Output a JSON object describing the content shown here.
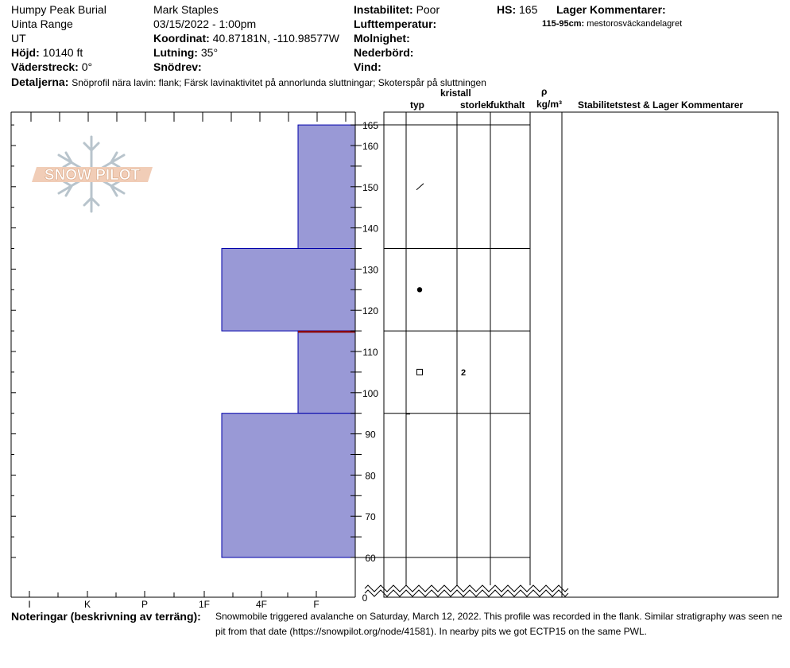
{
  "header": {
    "location": "Humpy Peak Burial",
    "range": "Uinta Range",
    "state": "UT",
    "elevation_label": "Höjd:",
    "elevation": "10140 ft",
    "aspect_label": "Väderstreck:",
    "aspect": "0°",
    "observer": "Mark Staples",
    "datetime": "03/15/2022 - 1:00pm",
    "coord_label": "Koordinat:",
    "coord": "40.87181N, -110.98577W",
    "slope_label": "Lutning:",
    "slope": "35°",
    "drift_label": "Snödrev:",
    "instability_label": "Instabilitet:",
    "instability": "Poor",
    "airtemp_label": "Lufttemperatur:",
    "cloud_label": "Molnighet:",
    "precip_label": "Nederbörd:",
    "wind_label": "Vind:",
    "hs_label": "HS:",
    "hs": "165",
    "layer_comments_label": "Lager Kommentarer:",
    "layer_comment_range": "115-95cm:",
    "layer_comment_text": "mestorosväckandelagret",
    "details_label": "Detaljerna:",
    "details": "Snöprofil nära lavin: flank; Färsk lavinaktivitet på annorlunda sluttningar; Skoterspår på sluttningen"
  },
  "logo": {
    "text": "SNOW PILOT"
  },
  "columns": {
    "type": "typ",
    "crystal": "kristall",
    "size": "storlek",
    "moisture": "fukthalt",
    "rho": "ρ",
    "density_unit": "kg/m³",
    "stability": "Stabilitetstest & Lager Kommentarer"
  },
  "notes": {
    "label": "Noteringar (beskrivning av terräng):",
    "line1": "Snowmobile triggered avalanche on Saturday, March 12, 2022. This profile was recorded in the flank. Similar stratigraphy was seen ne",
    "line2": "pit from that date (https://snowpilot.org/node/41581). In nearby pits we got ECTP15 on the same PWL."
  },
  "chart_data": {
    "type": "bar",
    "title": "",
    "xlabel": "",
    "ylabel": "",
    "hardness_ticks": [
      "I",
      "K",
      "P",
      "1F",
      "4F",
      "F"
    ],
    "depth_ticks": [
      60,
      70,
      80,
      90,
      100,
      110,
      120,
      130,
      140,
      150,
      160,
      165
    ],
    "depth_zero": 0,
    "ylim": [
      55,
      168
    ],
    "layers": [
      {
        "top": 165,
        "bottom": 135,
        "hardness": "F"
      },
      {
        "top": 135,
        "bottom": 115,
        "hardness": "4F"
      },
      {
        "top": 115,
        "bottom": 95,
        "hardness": "F"
      },
      {
        "top": 95,
        "bottom": 60,
        "hardness": "4F"
      }
    ],
    "weak_layer_depth": 115,
    "grain_types": [
      {
        "depth": 150,
        "symbol": "decomposing"
      },
      {
        "depth": 125,
        "symbol": "rounded"
      },
      {
        "depth": 105,
        "symbol": "faceted",
        "size": "2"
      }
    ],
    "colors": {
      "layer_fill": "#9999d6",
      "layer_stroke": "#0000aa",
      "weak_layer": "#8b0000"
    }
  }
}
